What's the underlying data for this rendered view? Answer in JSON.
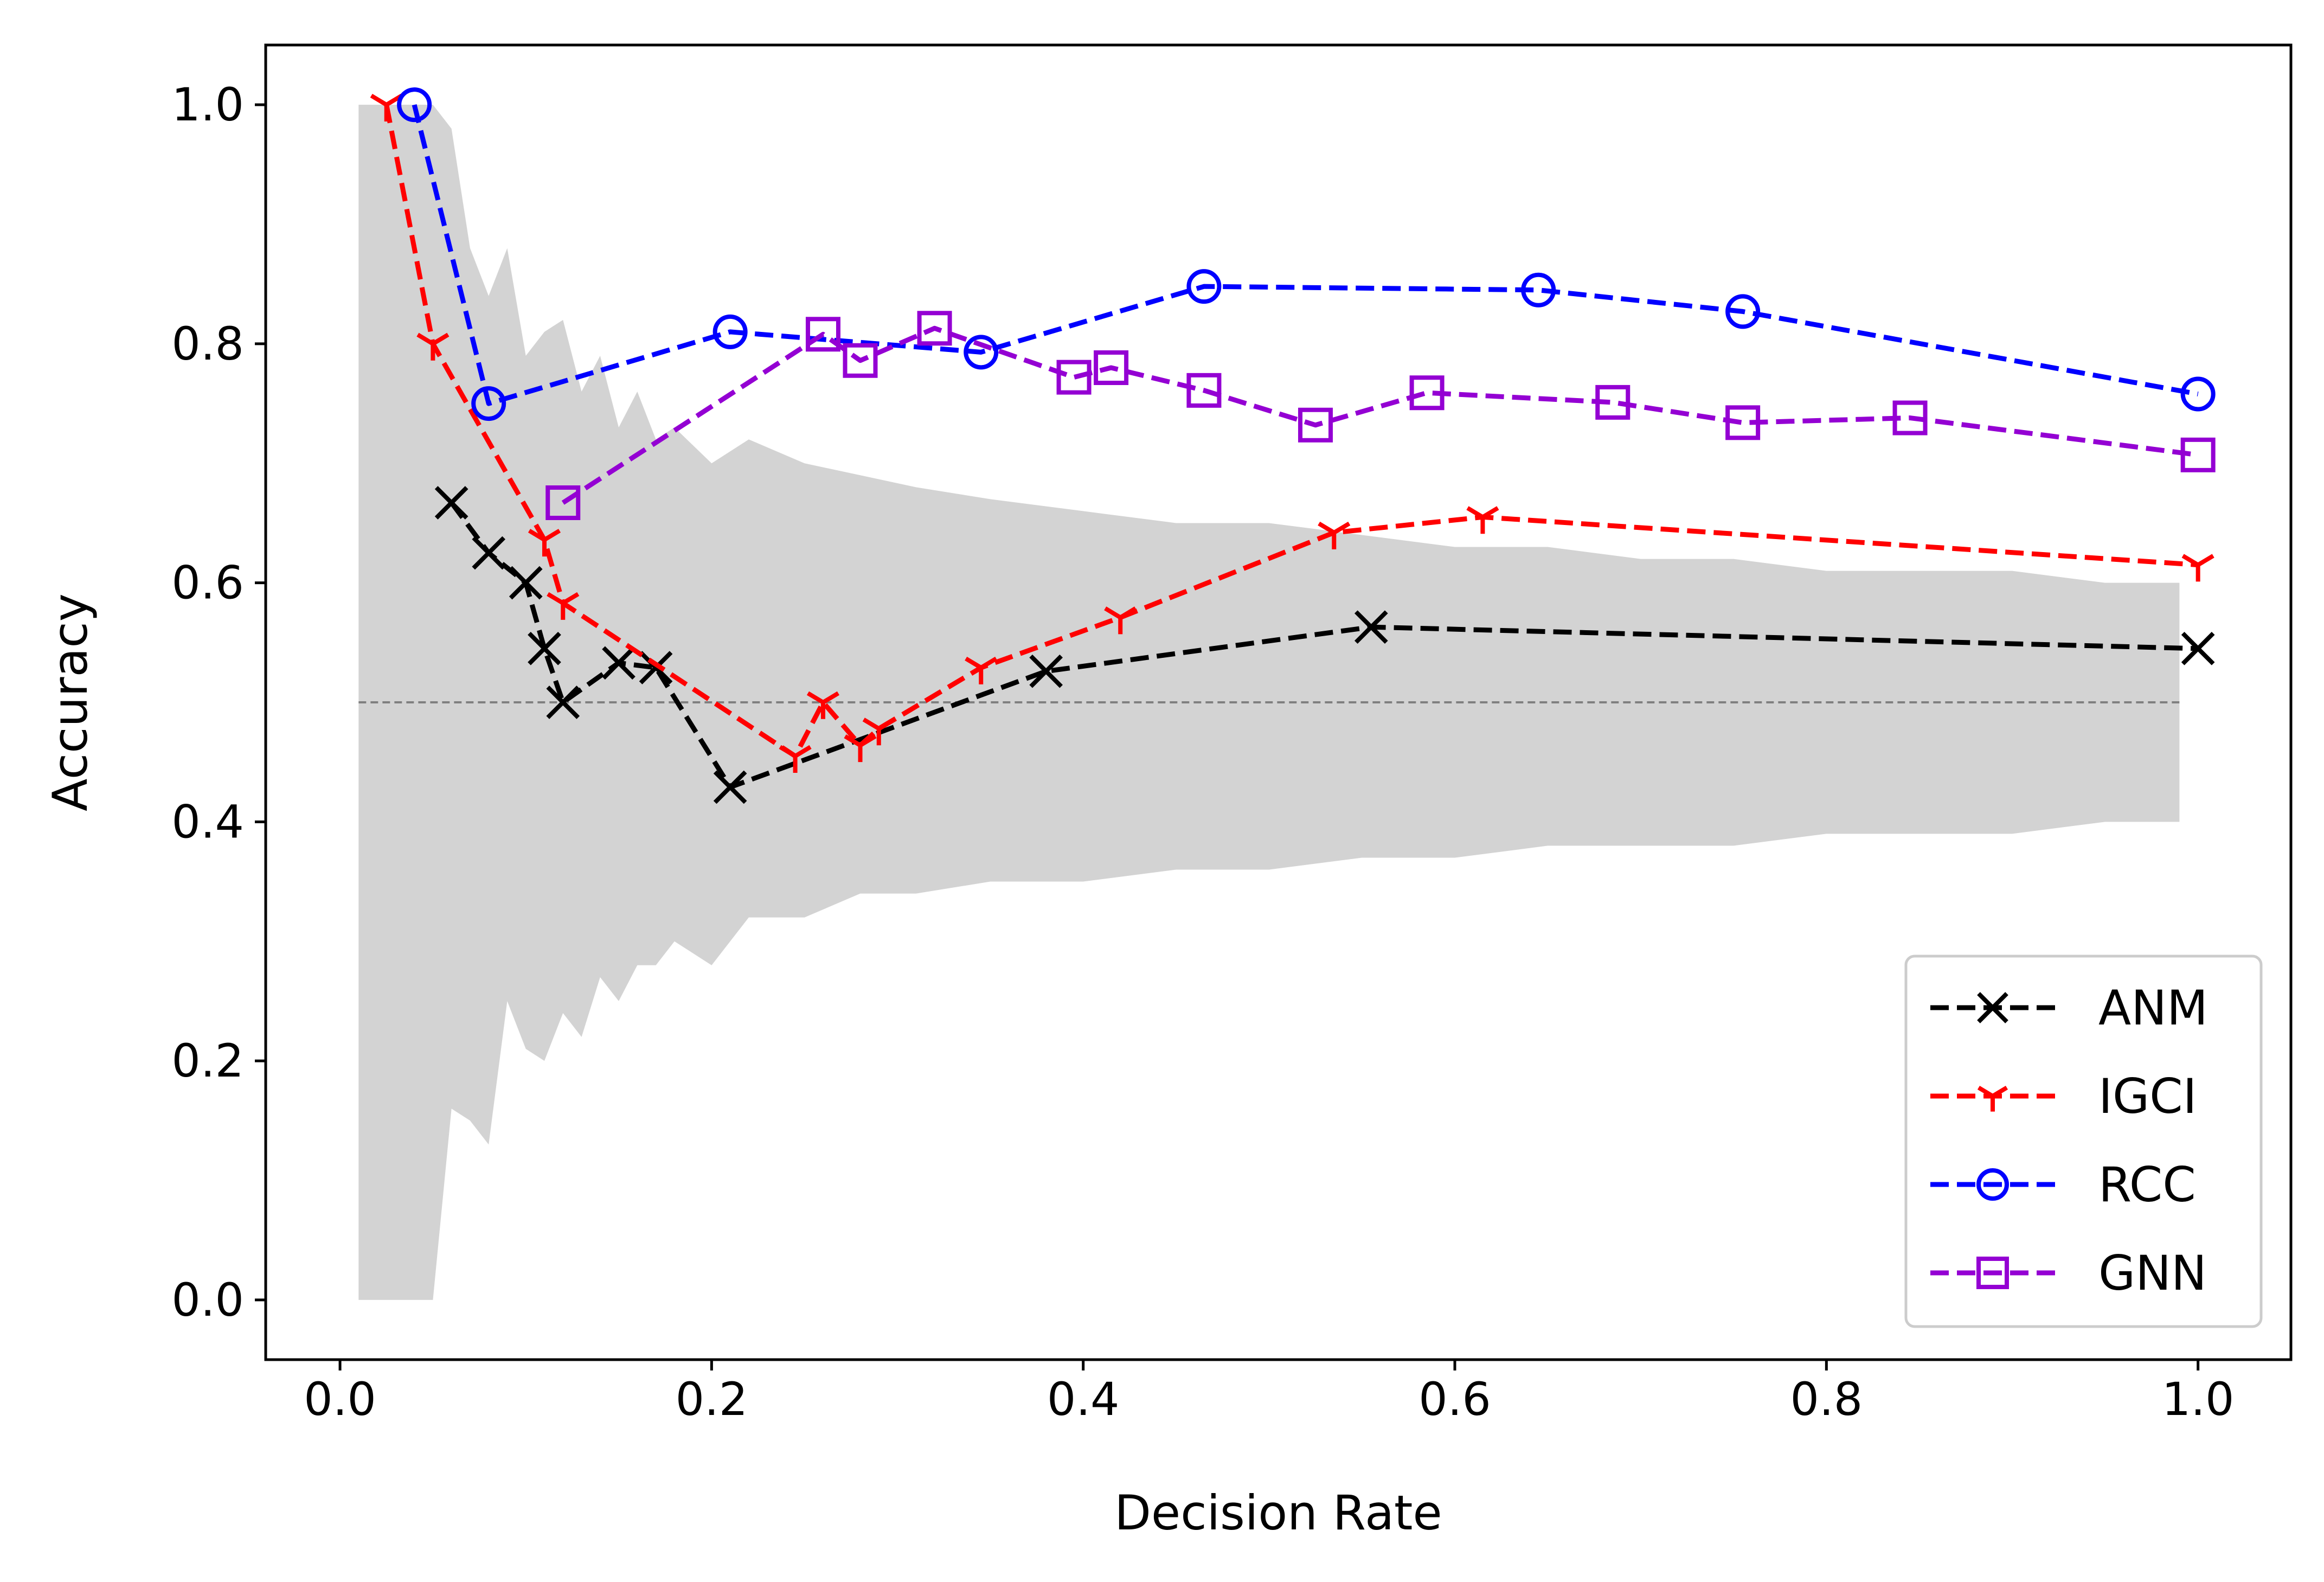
{
  "chart_data": {
    "type": "line",
    "title": "",
    "xlabel": "Decision Rate",
    "ylabel": "Accuracy",
    "xlim": [
      -0.04,
      1.05
    ],
    "ylim": [
      -0.05,
      1.05
    ],
    "xticks": [
      0.0,
      0.2,
      0.4,
      0.6,
      0.8,
      1.0
    ],
    "yticks": [
      0.0,
      0.2,
      0.4,
      0.6,
      0.8,
      1.0
    ],
    "xtick_labels": [
      "0.0",
      "0.2",
      "0.4",
      "0.6",
      "0.8",
      "1.0"
    ],
    "ytick_labels": [
      "0.0",
      "0.2",
      "0.4",
      "0.6",
      "0.8",
      "1.0"
    ],
    "grid": false,
    "legend_position": "lower-right",
    "reference_line": {
      "y": 0.5,
      "x_range": [
        0.01,
        0.99
      ],
      "color": "#808080",
      "style": "dashed"
    },
    "confidence_band": {
      "color": "#d3d3d3",
      "x": [
        0.01,
        0.05,
        0.06,
        0.07,
        0.08,
        0.09,
        0.1,
        0.11,
        0.12,
        0.13,
        0.14,
        0.15,
        0.16,
        0.17,
        0.18,
        0.2,
        0.22,
        0.25,
        0.28,
        0.31,
        0.35,
        0.4,
        0.45,
        0.5,
        0.55,
        0.6,
        0.65,
        0.7,
        0.75,
        0.8,
        0.85,
        0.9,
        0.95,
        0.99
      ],
      "upper": [
        1.0,
        1.0,
        0.98,
        0.88,
        0.84,
        0.88,
        0.79,
        0.81,
        0.82,
        0.76,
        0.79,
        0.73,
        0.76,
        0.72,
        0.73,
        0.7,
        0.72,
        0.7,
        0.69,
        0.68,
        0.67,
        0.66,
        0.65,
        0.65,
        0.64,
        0.63,
        0.63,
        0.62,
        0.62,
        0.61,
        0.61,
        0.61,
        0.6,
        0.6
      ],
      "lower": [
        0.0,
        0.0,
        0.16,
        0.15,
        0.13,
        0.25,
        0.21,
        0.2,
        0.24,
        0.22,
        0.27,
        0.25,
        0.28,
        0.28,
        0.3,
        0.28,
        0.32,
        0.32,
        0.34,
        0.34,
        0.35,
        0.35,
        0.36,
        0.36,
        0.37,
        0.37,
        0.38,
        0.38,
        0.38,
        0.39,
        0.39,
        0.39,
        0.4,
        0.4
      ]
    },
    "series": [
      {
        "name": "ANM",
        "color": "#000000",
        "marker": "x",
        "x": [
          0.06,
          0.08,
          0.1,
          0.11,
          0.12,
          0.15,
          0.17,
          0.21,
          0.38,
          0.555,
          1.0
        ],
        "y": [
          0.667,
          0.625,
          0.6,
          0.545,
          0.5,
          0.533,
          0.529,
          0.429,
          0.526,
          0.563,
          0.545
        ]
      },
      {
        "name": "IGCI",
        "color": "#ff0000",
        "marker": "tri_down",
        "x": [
          0.025,
          0.05,
          0.11,
          0.12,
          0.245,
          0.26,
          0.28,
          0.29,
          0.345,
          0.42,
          0.535,
          0.615,
          1.0
        ],
        "y": [
          1.0,
          0.8,
          0.636,
          0.583,
          0.455,
          0.5,
          0.464,
          0.478,
          0.529,
          0.571,
          0.642,
          0.655,
          0.615
        ]
      },
      {
        "name": "RCC",
        "color": "#0000ff",
        "marker": "circle",
        "x": [
          0.04,
          0.08,
          0.21,
          0.345,
          0.465,
          0.645,
          0.755,
          1.0
        ],
        "y": [
          1.0,
          0.75,
          0.81,
          0.793,
          0.848,
          0.845,
          0.827,
          0.758
        ]
      },
      {
        "name": "GNN",
        "color": "#9400d3",
        "marker": "square",
        "x": [
          0.12,
          0.26,
          0.28,
          0.32,
          0.395,
          0.415,
          0.465,
          0.525,
          0.585,
          0.685,
          0.755,
          0.845,
          1.0
        ],
        "y": [
          0.667,
          0.808,
          0.786,
          0.813,
          0.772,
          0.78,
          0.761,
          0.732,
          0.759,
          0.751,
          0.734,
          0.738,
          0.707
        ]
      }
    ]
  }
}
